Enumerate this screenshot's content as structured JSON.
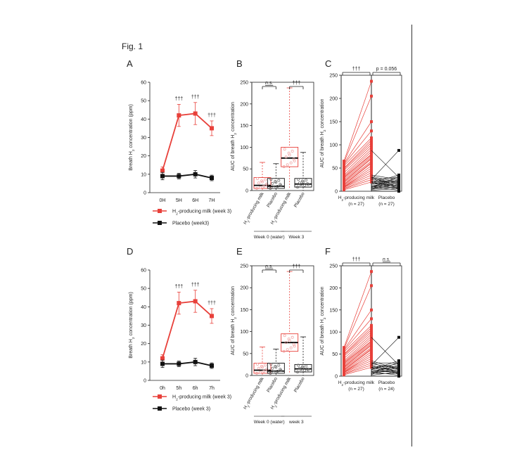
{
  "figure_label": "Fig. 1",
  "colors": {
    "red": "#e8403a",
    "black": "#111111",
    "lightred": "#f0a0a0"
  },
  "chart_data": [
    {
      "panel": "A",
      "type": "line",
      "categories": [
        "0H",
        "5H",
        "6H",
        "7H"
      ],
      "ylabel_pre": "Breath H",
      "ylabel_sub": "2",
      "ylabel_post": " concentration (ppm)",
      "ylim": [
        0,
        60
      ],
      "yticks": [
        0,
        10,
        20,
        30,
        40,
        50,
        60
      ],
      "series": [
        {
          "name": "H2-producing milk (week 3)",
          "legend_pre": "H",
          "legend_sub": "2",
          "legend_post": "-producing  milk (week 3)",
          "color": "red",
          "values": [
            12,
            42,
            43,
            35
          ],
          "errors": [
            2,
            6,
            6,
            4
          ]
        },
        {
          "name": "Placebo (week3)",
          "legend_text": "Placebo (week3)",
          "color": "black",
          "values": [
            9,
            9,
            10,
            8
          ],
          "errors": [
            2,
            1.5,
            2,
            1.5
          ]
        }
      ],
      "annotations": [
        "",
        "†††",
        "†††",
        "†††"
      ]
    },
    {
      "panel": "B",
      "type": "box",
      "ylabel_pre": "AUC of breath H",
      "ylabel_sub": "2",
      "ylabel_post": " concentration",
      "ylim": [
        0,
        250
      ],
      "yticks": [
        0,
        50,
        100,
        150,
        200,
        250
      ],
      "boxes": [
        {
          "label": "H2-producing milk",
          "color": "red",
          "min": 0,
          "q1": 5,
          "median": 12,
          "q3": 30,
          "max": 65
        },
        {
          "label": "Placebo",
          "color": "black",
          "min": 0,
          "q1": 5,
          "median": 10,
          "q3": 28,
          "max": 62
        },
        {
          "label": "H2-producing milk",
          "color": "red",
          "min": 5,
          "q1": 55,
          "median": 75,
          "q3": 100,
          "max": 237
        },
        {
          "label": "Placebo",
          "color": "black",
          "min": 0,
          "q1": 8,
          "median": 15,
          "q3": 28,
          "max": 88
        }
      ],
      "tick_labels": [
        "H2-producing milk",
        "Placebo",
        "H2-producing milk",
        "Placebo"
      ],
      "groups": [
        "Week 0 (water)",
        "Week 3"
      ],
      "comparisons": [
        "n.s.",
        "†††"
      ]
    },
    {
      "panel": "C",
      "type": "paired",
      "ylabel_pre": "AUC of breath H",
      "ylabel_sub": "2",
      "ylabel_post": " concentration",
      "ylim": [
        0,
        250
      ],
      "yticks": [
        0,
        50,
        100,
        150,
        200,
        250
      ],
      "columns": [
        {
          "label_pre": "H",
          "label_sub": "2",
          "label_post": "-producing milk",
          "n": "(n = 27)",
          "color": "red",
          "start": [
            3,
            5,
            6,
            8,
            9,
            10,
            10,
            12,
            14,
            15,
            18,
            20,
            22,
            25,
            28,
            30,
            32,
            35,
            40,
            45,
            48,
            50,
            55,
            58,
            60,
            62,
            65
          ],
          "end": [
            20,
            25,
            30,
            35,
            40,
            45,
            50,
            55,
            60,
            62,
            65,
            70,
            72,
            75,
            78,
            80,
            85,
            90,
            95,
            100,
            105,
            110,
            115,
            130,
            150,
            205,
            237
          ]
        },
        {
          "label": "Placebo",
          "n": "(n = 27)",
          "color": "black",
          "end": [
            0,
            2,
            4,
            5,
            6,
            8,
            8,
            10,
            10,
            12,
            12,
            15,
            15,
            18,
            18,
            20,
            20,
            22,
            22,
            25,
            25,
            28,
            30,
            30,
            32,
            35,
            88
          ]
        }
      ],
      "comparisons": [
        "†††",
        "p = 0.056"
      ]
    },
    {
      "panel": "D",
      "type": "line",
      "categories": [
        "0h",
        "5h",
        "6h",
        "7h"
      ],
      "ylabel_pre": "Breath H",
      "ylabel_sub": "2",
      "ylabel_post": " concentration (ppm)",
      "ylim": [
        0,
        60
      ],
      "yticks": [
        0,
        10,
        20,
        30,
        40,
        50,
        60
      ],
      "series": [
        {
          "name": "H2-producing milk (week 3)",
          "legend_pre": "H",
          "legend_sub": "2",
          "legend_post": "-producing  milk (week 3)",
          "color": "red",
          "values": [
            12,
            42,
            43,
            35
          ],
          "errors": [
            2,
            6,
            6,
            4
          ]
        },
        {
          "name": "Placebo (week 3)",
          "legend_text": "Placebo (week 3)",
          "color": "black",
          "values": [
            9,
            9,
            10,
            8
          ],
          "errors": [
            2,
            1.5,
            2,
            1.5
          ]
        }
      ],
      "annotations": [
        "",
        "†††",
        "†††",
        "†††"
      ]
    },
    {
      "panel": "E",
      "type": "box",
      "ylabel_pre": "AUC of breath H",
      "ylabel_sub": "2",
      "ylabel_post": " concentration",
      "ylim": [
        0,
        250
      ],
      "yticks": [
        0,
        50,
        100,
        150,
        200,
        250
      ],
      "boxes": [
        {
          "label": "H2-producing milk",
          "color": "red",
          "min": 0,
          "q1": 5,
          "median": 12,
          "q3": 28,
          "max": 65
        },
        {
          "label": "Placebo",
          "color": "black",
          "min": 0,
          "q1": 5,
          "median": 10,
          "q3": 28,
          "max": 60
        },
        {
          "label": "H2-producing milk",
          "color": "red",
          "min": 5,
          "q1": 55,
          "median": 75,
          "q3": 95,
          "max": 237
        },
        {
          "label": "Placebo",
          "color": "black",
          "min": 0,
          "q1": 8,
          "median": 15,
          "q3": 25,
          "max": 88
        }
      ],
      "tick_labels": [
        "H2-producing milk",
        "Placebo",
        "H2-producing milk",
        "Placebo"
      ],
      "groups": [
        "Week 0 (water)",
        "week 3"
      ],
      "comparisons": [
        "n.s.",
        "†††"
      ]
    },
    {
      "panel": "F",
      "type": "paired",
      "ylabel_pre": "AUC of breath H",
      "ylabel_sub": "2",
      "ylabel_post": " concentration",
      "ylim": [
        0,
        250
      ],
      "yticks": [
        0,
        50,
        100,
        150,
        200,
        250
      ],
      "columns": [
        {
          "label_pre": "H",
          "label_sub": "2",
          "label_post": "-producing milk",
          "n": "(n = 27)",
          "color": "red",
          "start": [
            3,
            5,
            6,
            8,
            9,
            10,
            10,
            12,
            14,
            15,
            18,
            20,
            22,
            25,
            28,
            30,
            32,
            35,
            40,
            45,
            48,
            50,
            55,
            58,
            60,
            62,
            65
          ],
          "end": [
            20,
            25,
            30,
            35,
            40,
            45,
            50,
            55,
            60,
            62,
            65,
            70,
            72,
            75,
            78,
            80,
            85,
            90,
            95,
            100,
            105,
            110,
            115,
            130,
            150,
            205,
            237
          ]
        },
        {
          "label": "Placebo",
          "n": "(n = 24)",
          "color": "black",
          "end": [
            0,
            2,
            4,
            5,
            6,
            8,
            8,
            10,
            10,
            12,
            15,
            15,
            18,
            18,
            20,
            20,
            22,
            25,
            25,
            28,
            30,
            32,
            35,
            88
          ]
        }
      ],
      "comparisons": [
        "†††",
        "n.s."
      ]
    }
  ]
}
